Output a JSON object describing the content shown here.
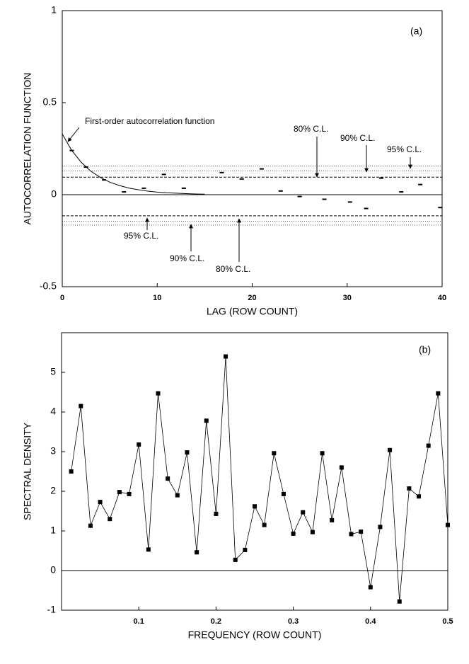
{
  "chart_data": [
    {
      "type": "scatter",
      "panel_label": "(a)",
      "xlabel": "LAG (ROW COUNT)",
      "ylabel": "AUTOCORRELATION FUNCTION",
      "xlim": [
        0,
        40
      ],
      "ylim": [
        -0.5,
        1
      ],
      "xticks": [
        0,
        10,
        20,
        30,
        40
      ],
      "yticks": [
        1,
        0.5,
        0,
        -0.5
      ],
      "x": [
        1,
        2.5,
        4.4,
        6.5,
        8.6,
        10.7,
        12.8,
        16.8,
        18.9,
        21,
        23,
        25,
        27.6,
        30.3,
        32,
        33.6,
        35.7,
        37.7,
        39.8
      ],
      "values": [
        0.24,
        0.15,
        0.08,
        0.015,
        0.035,
        0.11,
        0.035,
        0.12,
        0.085,
        0.14,
        0.02,
        -0.01,
        -0.025,
        -0.04,
        -0.075,
        0.09,
        0.015,
        0.055,
        -0.07
      ],
      "color": "#000000",
      "curve": {
        "x": [
          0,
          1,
          2,
          3,
          4,
          5,
          6,
          7,
          8,
          9,
          10,
          11,
          12,
          13,
          14,
          15
        ],
        "values": [
          0.33,
          0.24,
          0.176,
          0.128,
          0.094,
          0.068,
          0.05,
          0.036,
          0.027,
          0.019,
          0.014,
          0.01,
          0.008,
          0.006,
          0.004,
          0.003
        ]
      },
      "confidence_lines": [
        {
          "value": 0.155,
          "style": "dotted"
        },
        {
          "value": 0.13,
          "style": "dotted"
        },
        {
          "value": 0.095,
          "style": "dashed"
        },
        {
          "value": -0.115,
          "style": "dashed"
        },
        {
          "value": -0.145,
          "style": "dotted"
        },
        {
          "value": -0.165,
          "style": "dotted"
        }
      ],
      "annotations": [
        "First-order autocorrelation function",
        "80% C.L.",
        "90% C.L.",
        "95% C.L.",
        "95% C.L.",
        "90% C.L.",
        "80% C.L."
      ]
    },
    {
      "type": "line",
      "panel_label": "(b)",
      "xlabel": "FREQUENCY (ROW COUNT)",
      "ylabel": "SPECTRAL DENSITY",
      "xlim": [
        0,
        0.5
      ],
      "ylim": [
        -1,
        6
      ],
      "xticks": [
        0.1,
        0.2,
        0.3,
        0.4,
        0.5
      ],
      "yticks": [
        5,
        4,
        3,
        2,
        1,
        0,
        -1
      ],
      "x": [
        0.0125,
        0.025,
        0.0375,
        0.05,
        0.0625,
        0.075,
        0.0875,
        0.1,
        0.1125,
        0.125,
        0.1375,
        0.15,
        0.1625,
        0.175,
        0.1875,
        0.2,
        0.2125,
        0.225,
        0.2375,
        0.25,
        0.2625,
        0.275,
        0.2875,
        0.3,
        0.3125,
        0.325,
        0.3375,
        0.35,
        0.3625,
        0.375,
        0.3875,
        0.4,
        0.4125,
        0.425,
        0.4375,
        0.45,
        0.4625,
        0.475,
        0.4875,
        0.5
      ],
      "values": [
        2.5,
        4.15,
        1.13,
        1.73,
        1.3,
        1.98,
        1.93,
        3.18,
        0.53,
        4.47,
        2.32,
        1.9,
        2.98,
        0.46,
        3.78,
        1.43,
        5.4,
        0.27,
        0.52,
        1.62,
        1.15,
        2.96,
        1.93,
        0.93,
        1.47,
        0.97,
        2.96,
        1.27,
        2.6,
        0.92,
        0.98,
        -0.42,
        1.1,
        3.04,
        -0.78,
        2.07,
        1.87,
        3.15,
        4.47,
        1.15
      ],
      "color": "#000000"
    }
  ]
}
